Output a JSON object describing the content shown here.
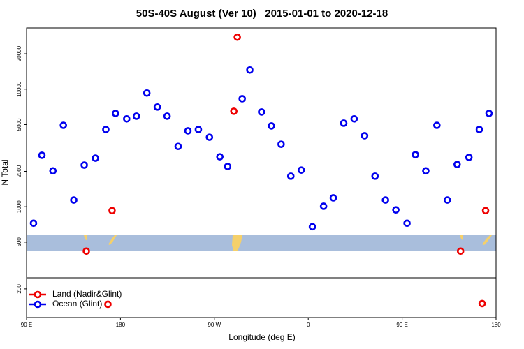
{
  "chart_data": {
    "type": "scatter",
    "title": "50S-40S August (Ver 10)   2015-01-01 to 2020-12-18",
    "x_label": "Longitude (deg E)",
    "y_label": "N Total",
    "log_y": true,
    "legend_position": "bottom-left",
    "xlim": [
      90,
      540
    ],
    "ylim": [
      114,
      33200
    ],
    "xticks": [
      {
        "value": 90,
        "label": "90 E"
      },
      180,
      {
        "value": 270,
        "label": "90 W"
      },
      {
        "value": 360,
        "label": "0"
      },
      {
        "value": 450,
        "label": "90 E"
      },
      {
        "value": 540,
        "label": "180"
      }
    ],
    "yticks": [
      200,
      500,
      1000,
      2000,
      5000,
      10000,
      20000
    ],
    "series": [
      {
        "name": "Land (Nadir&Glint)",
        "color": "#ee0000",
        "x": [
          147.3,
          172,
          288.7,
          292,
          506,
          530,
          526.7,
          168
        ],
        "values": [
          419,
          926,
          6490,
          27700,
          419,
          926,
          150,
          148
        ]
      },
      {
        "name": "Ocean (Glint)",
        "color": "#0000ee",
        "x": [
          96.7,
          104.7,
          115.3,
          125.3,
          135.3,
          145.3,
          156,
          166,
          175.3,
          186,
          195.3,
          205.3,
          215.3,
          224.7,
          235.3,
          244.7,
          254.7,
          265.3,
          275.3,
          282.7,
          296.7,
          304,
          315.3,
          324.7,
          334,
          343.3,
          353.3,
          364,
          374.7,
          384,
          394,
          404,
          414,
          424,
          434,
          444,
          454.7,
          462.7,
          472.7,
          483.3,
          493.3,
          502.7,
          514,
          524,
          533.3
        ],
        "values": [
          724,
          2740,
          2020,
          4930,
          1140,
          2260,
          2590,
          4540,
          6220,
          5590,
          5890,
          9270,
          7050,
          5890,
          3260,
          4420,
          4540,
          3900,
          2660,
          2200,
          8300,
          14560,
          6400,
          4870,
          3400,
          1820,
          2050,
          676,
          1010,
          1190,
          5140,
          5590,
          4020,
          1820,
          1140,
          940,
          724,
          2770,
          2020,
          4930,
          1140,
          2290,
          2630,
          4540,
          6220
        ]
      }
    ]
  }
}
